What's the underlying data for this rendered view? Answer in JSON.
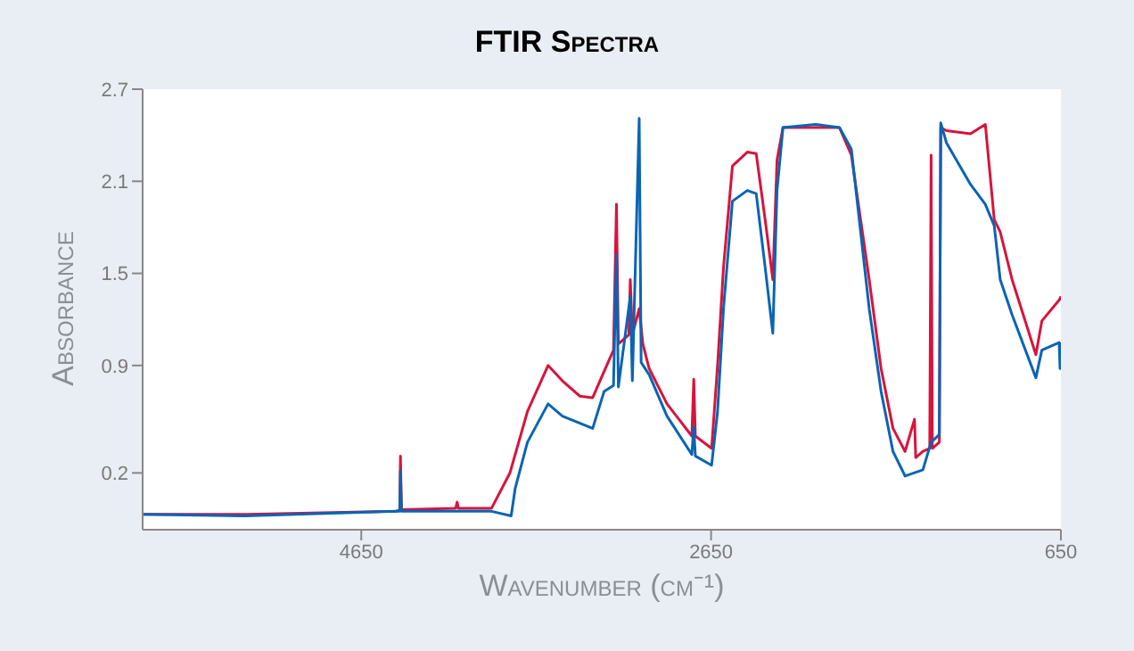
{
  "chart_data": {
    "type": "line",
    "title": "FTIR Spectra",
    "xlabel": "Wavenumber (cm⁻¹)",
    "ylabel": "Absorbance",
    "xlim": [
      5900,
      650
    ],
    "xticks": [
      4650,
      2650,
      650
    ],
    "ylim": [
      -0.17,
      2.7
    ],
    "yticks": [
      0.2,
      0.9,
      1.5,
      2.1,
      2.7
    ],
    "grid": false,
    "marker": "none",
    "line_style": "solid",
    "series": [
      {
        "color": "#d7143c",
        "x": [
          5900,
          5300,
          4450,
          4430,
          4426,
          4420,
          4110,
          4102,
          4095,
          3905,
          3800,
          3700,
          3582,
          3500,
          3400,
          3327,
          3262,
          3208,
          3191,
          3180,
          3120,
          3112,
          3100,
          3061,
          3040,
          3004,
          2902,
          2760,
          2749,
          2740,
          2647,
          2613,
          2579,
          2528,
          2443,
          2392,
          2341,
          2297,
          2273,
          2239,
          2052,
          1916,
          1848,
          1746,
          1678,
          1610,
          1541,
          1487,
          1480,
          1439,
          1400,
          1392,
          1385,
          1345,
          1337,
          1304,
          1167,
          1082,
          1031,
          997,
          929,
          793,
          759,
          657,
          650
        ],
        "values": [
          -0.07,
          -0.07,
          -0.05,
          -0.04,
          0.31,
          -0.04,
          -0.03,
          0.01,
          -0.03,
          -0.03,
          0.2,
          0.6,
          0.9,
          0.8,
          0.7,
          0.69,
          0.86,
          1.0,
          1.95,
          1.04,
          1.1,
          1.46,
          1.1,
          1.27,
          1.04,
          0.88,
          0.65,
          0.44,
          0.81,
          0.44,
          0.36,
          0.9,
          1.54,
          2.2,
          2.29,
          2.28,
          1.85,
          1.46,
          2.24,
          2.45,
          2.45,
          2.45,
          2.27,
          1.46,
          0.88,
          0.49,
          0.34,
          0.55,
          0.3,
          0.34,
          0.36,
          2.27,
          0.36,
          0.4,
          2.45,
          2.43,
          2.41,
          2.47,
          1.85,
          1.77,
          1.46,
          0.97,
          1.19,
          1.33,
          1.35
        ]
      },
      {
        "color": "#0a64b4",
        "x": [
          5900,
          5316,
          4450,
          4430,
          4426,
          4420,
          3905,
          3793,
          3770,
          3700,
          3582,
          3500,
          3327,
          3262,
          3208,
          3191,
          3180,
          3112,
          3100,
          3061,
          3050,
          3004,
          2902,
          2760,
          2749,
          2740,
          2647,
          2613,
          2579,
          2528,
          2443,
          2392,
          2341,
          2297,
          2273,
          2239,
          2052,
          1916,
          1848,
          1746,
          1678,
          1610,
          1541,
          1439,
          1392,
          1345,
          1337,
          1304,
          1167,
          1082,
          1031,
          997,
          929,
          793,
          759,
          660,
          655,
          650
        ],
        "values": [
          -0.07,
          -0.08,
          -0.05,
          -0.05,
          0.21,
          -0.05,
          -0.05,
          -0.08,
          0.1,
          0.4,
          0.65,
          0.57,
          0.49,
          0.73,
          0.77,
          1.62,
          0.76,
          1.35,
          0.8,
          2.51,
          0.92,
          0.84,
          0.57,
          0.32,
          0.5,
          0.31,
          0.25,
          0.6,
          1.27,
          1.97,
          2.04,
          2.02,
          1.54,
          1.11,
          2.04,
          2.45,
          2.47,
          2.45,
          2.31,
          1.27,
          0.73,
          0.34,
          0.18,
          0.22,
          0.4,
          0.45,
          2.48,
          2.35,
          2.08,
          1.95,
          1.81,
          1.46,
          1.23,
          0.82,
          1.0,
          1.05,
          0.88,
          1.05
        ]
      }
    ]
  }
}
